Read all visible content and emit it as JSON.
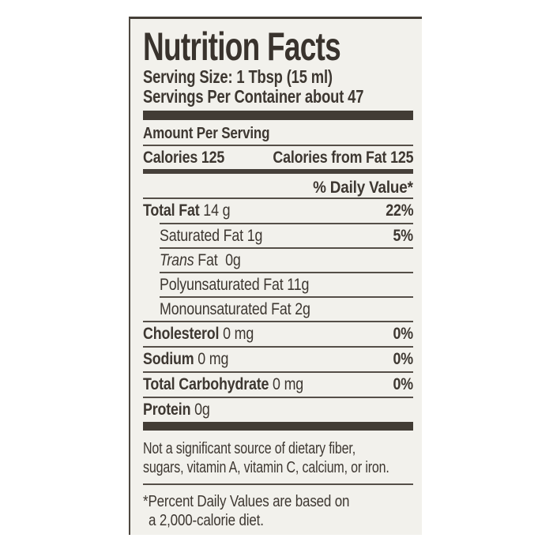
{
  "colors": {
    "page_bg": "#ffffff",
    "label_bg": "#f2f1ec",
    "text": "#3d3731",
    "thin_line": "#554f48",
    "thick_bar": "#423c35"
  },
  "label": {
    "title": "Nutrition Facts",
    "serving_size": "Serving Size: 1 Tbsp (15 ml)",
    "servings_per_container": "Servings Per Container about 47",
    "amount_per_serving": "Amount Per Serving",
    "calories": "Calories 125",
    "calories_from_fat": "Calories from Fat 125",
    "daily_value_header": "% Daily Value*",
    "nutrients": [
      {
        "bold": "Total Fat",
        "italic": "",
        "rest": " 14 g",
        "value": "22%"
      },
      {
        "bold": "",
        "italic": "",
        "rest": "Saturated Fat 1g",
        "value": "5%"
      },
      {
        "bold": "",
        "italic": "Trans",
        "rest": " Fat  0g",
        "value": ""
      },
      {
        "bold": "",
        "italic": "",
        "rest": "Polyunsaturated Fat 11g",
        "value": ""
      },
      {
        "bold": "",
        "italic": "",
        "rest": "Monounsaturated Fat 2g",
        "value": ""
      },
      {
        "bold": "Cholesterol",
        "italic": "",
        "rest": " 0 mg",
        "value": "0%"
      },
      {
        "bold": "Sodium",
        "italic": "",
        "rest": " 0 mg",
        "value": "0%"
      },
      {
        "bold": "Total Carbohydrate",
        "italic": "",
        "rest": " 0 mg",
        "value": "0%"
      },
      {
        "bold": "Protein",
        "italic": "",
        "rest": " 0g",
        "value": ""
      }
    ],
    "note_line1": "Not a significant source of dietary fiber,",
    "note_line2": "sugars, vitamin A, vitamin C, calcium, or iron.",
    "footnote_line1": "*Percent Daily Values are based on",
    "footnote_line2": "a 2,000-calorie diet."
  }
}
